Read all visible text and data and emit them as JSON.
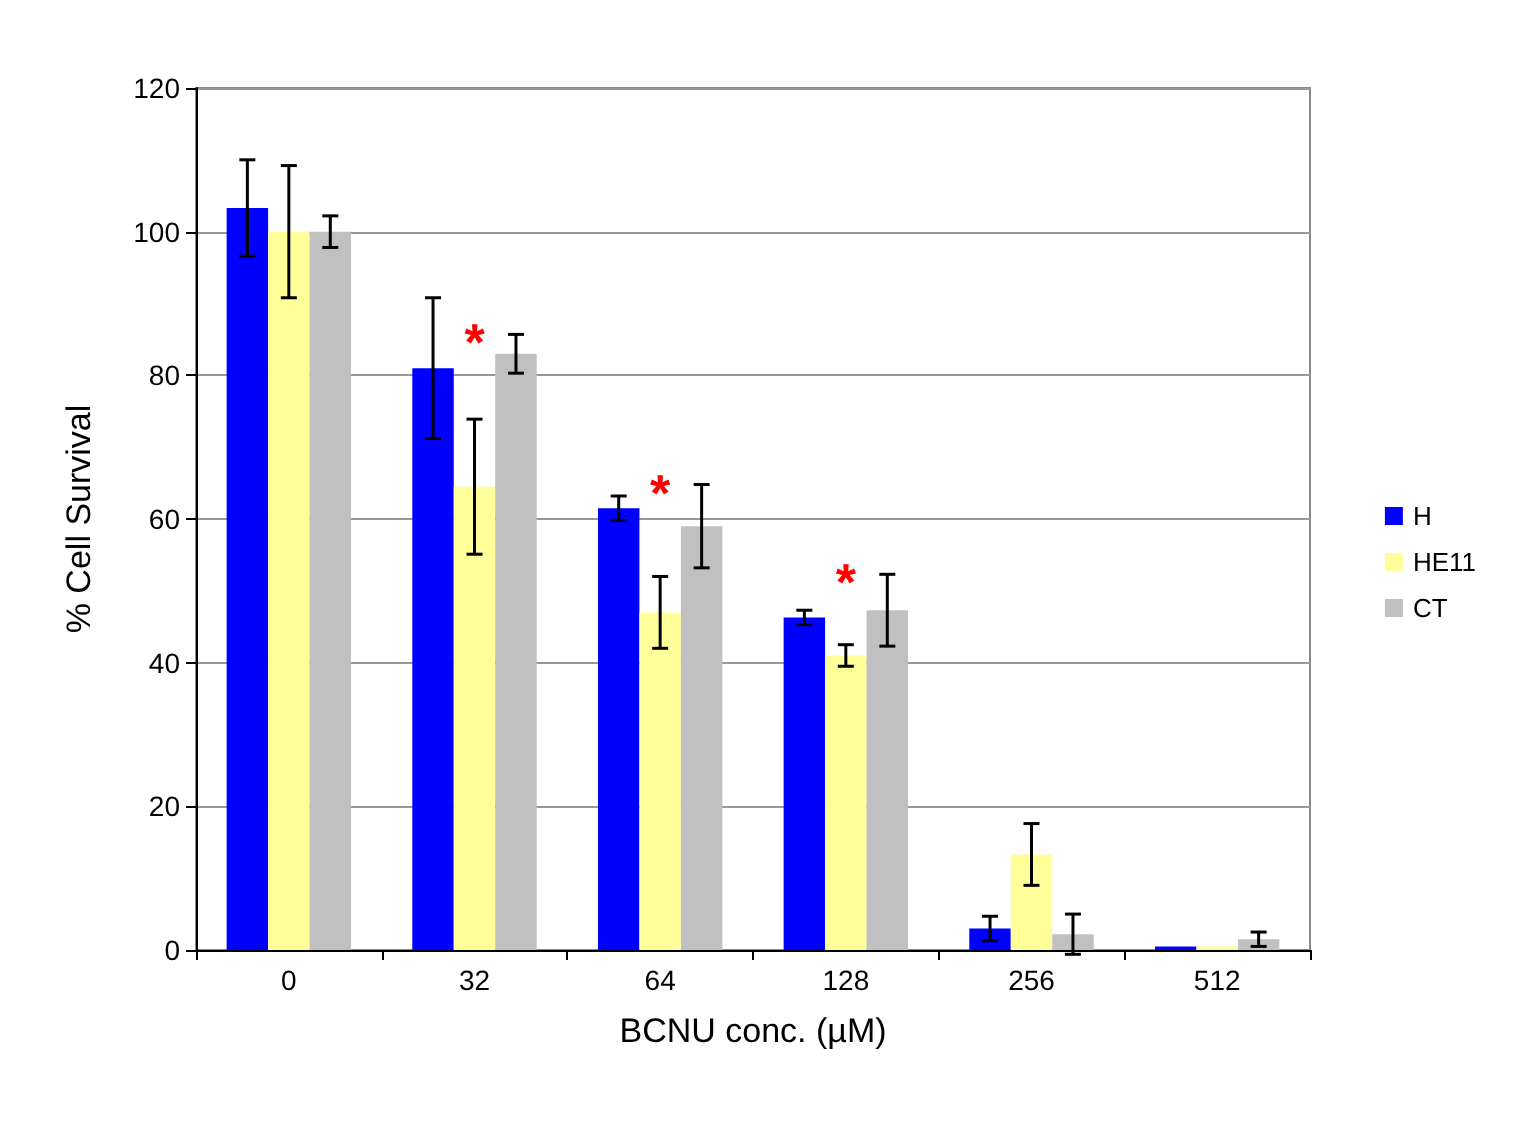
{
  "chart_data": {
    "type": "bar",
    "xlabel": "BCNU conc. (µM)",
    "ylabel": "% Cell Survival",
    "categories": [
      "0",
      "32",
      "64",
      "128",
      "256",
      "512"
    ],
    "series": [
      {
        "name": "H",
        "color": "#0000ff",
        "values": [
          103.3,
          81,
          61.5,
          46.3,
          3,
          0.5
        ],
        "errors": [
          6.7,
          9.8,
          1.7,
          1,
          1.7,
          null
        ]
      },
      {
        "name": "HE11",
        "color": "#ffff99",
        "values": [
          100,
          64.5,
          47,
          41,
          13.3,
          0.5
        ],
        "errors": [
          9.2,
          9.4,
          5,
          1.5,
          4.3,
          null
        ]
      },
      {
        "name": "CT",
        "color": "#c0c0c0",
        "values": [
          100,
          83,
          59,
          47.3,
          2.2,
          1.5
        ],
        "errors": [
          2.2,
          2.7,
          5.8,
          5,
          2.8,
          1
        ]
      }
    ],
    "annotations": [
      "*",
      "*",
      "*"
    ],
    "ylim": [
      0,
      120
    ],
    "yticks": [
      0,
      20,
      40,
      60,
      80,
      100,
      120
    ],
    "grid": "y",
    "legend": "right"
  }
}
